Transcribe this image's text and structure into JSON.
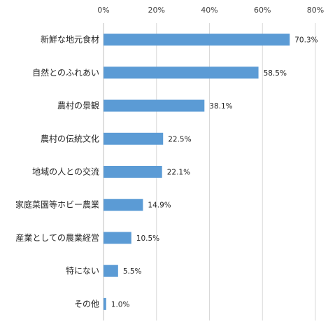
{
  "chart_data": {
    "type": "bar",
    "orientation": "horizontal",
    "categories": [
      "新鮮な地元食材",
      "自然とのふれあい",
      "農村の景観",
      "農村の伝統文化",
      "地域の人との交流",
      "家庭菜園等ホビー農業",
      "産業としての農業経営",
      "特にない",
      "その他"
    ],
    "values": [
      70.3,
      58.5,
      38.1,
      22.5,
      22.1,
      14.9,
      10.5,
      5.5,
      1.0
    ],
    "data_labels": [
      "70.3%",
      "58.5%",
      "38.1%",
      "22.5%",
      "22.1%",
      "14.9%",
      "10.5%",
      "5.5%",
      "1.0%"
    ],
    "x_ticks": [
      0,
      20,
      40,
      60,
      80
    ],
    "x_tick_labels": [
      "0%",
      "20%",
      "40%",
      "60%",
      "80%"
    ],
    "xlim": [
      0,
      80
    ],
    "x_axis_position": "top",
    "grid": true,
    "legend": "none",
    "bar_color": "#5b9bd5"
  }
}
